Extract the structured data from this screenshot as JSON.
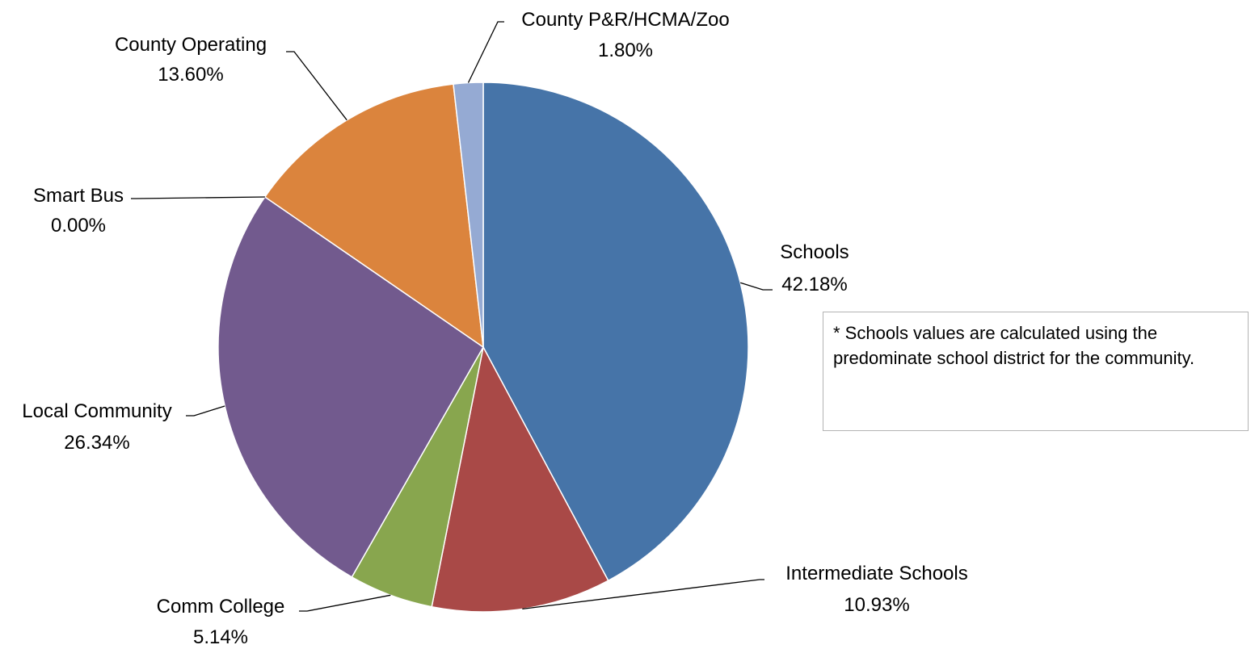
{
  "chart_data": {
    "type": "pie",
    "start_angle_deg": 0,
    "direction": "clockwise",
    "slices": [
      {
        "label": "Schools",
        "value": 42.18,
        "value_label": "42.18%",
        "color": "#4674a8"
      },
      {
        "label": "Intermediate Schools",
        "value": 10.93,
        "value_label": "10.93%",
        "color": "#a94947"
      },
      {
        "label": "Comm College",
        "value": 5.14,
        "value_label": "5.14%",
        "color": "#88a64e"
      },
      {
        "label": "Local Community",
        "value": 26.34,
        "value_label": "26.34%",
        "color": "#725a8e"
      },
      {
        "label": "Smart Bus",
        "value": 0.0,
        "value_label": "0.00%",
        "color": "#3c93b0"
      },
      {
        "label": "County Operating",
        "value": 13.6,
        "value_label": "13.60%",
        "color": "#db843d"
      },
      {
        "label": "County P&R/HCMA/Zoo",
        "value": 1.8,
        "value_label": "1.80%",
        "color": "#95aad3"
      }
    ]
  },
  "note": {
    "text": "* Schools values are calculated using the predominate school district for the community."
  }
}
